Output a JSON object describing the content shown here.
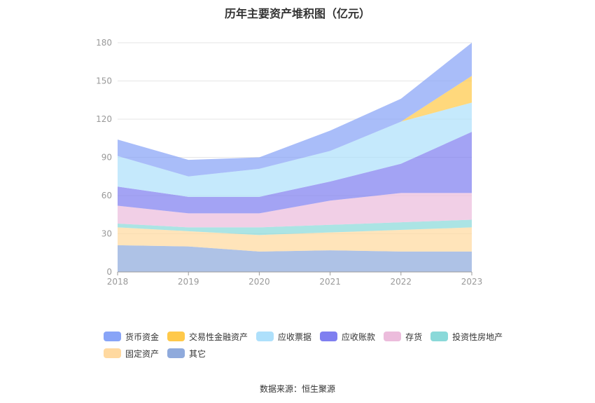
{
  "chart_data": {
    "type": "area",
    "stacked": true,
    "title": "历年主要资产堆积图（亿元）",
    "x": [
      "2018",
      "2019",
      "2020",
      "2021",
      "2022",
      "2023"
    ],
    "ylim": [
      0,
      180
    ],
    "yticks": [
      0,
      30,
      60,
      90,
      120,
      150,
      180
    ],
    "grid": true,
    "legend_position": "bottom",
    "series": [
      {
        "name": "其它",
        "color": "#8faadc",
        "values": [
          21,
          20,
          16,
          17,
          16,
          16
        ]
      },
      {
        "name": "固定资产",
        "color": "#ffd9a0",
        "values": [
          14,
          12,
          13,
          14,
          17,
          19
        ]
      },
      {
        "name": "投资性房地产",
        "color": "#8ad9d9",
        "values": [
          3,
          3,
          6,
          6,
          6,
          6
        ]
      },
      {
        "name": "存货",
        "color": "#ecbcdc",
        "values": [
          14,
          11,
          11,
          19,
          23,
          21
        ]
      },
      {
        "name": "应收账款",
        "color": "#7f7ff0",
        "values": [
          15,
          13,
          13,
          15,
          23,
          48
        ]
      },
      {
        "name": "应收票据",
        "color": "#aee0fb",
        "values": [
          24,
          16,
          22,
          24,
          33,
          23
        ]
      },
      {
        "name": "交易性金融资产",
        "color": "#ffc94a",
        "values": [
          0,
          0,
          0,
          0,
          0,
          21
        ]
      },
      {
        "name": "货币资金",
        "color": "#88a4f7",
        "values": [
          13,
          13,
          9,
          16,
          18,
          26
        ]
      }
    ]
  },
  "legend_order": [
    "货币资金",
    "交易性金融资产",
    "应收票据",
    "应收账款",
    "存货",
    "投资性房地产",
    "固定资产",
    "其它"
  ],
  "source": "数据来源：恒生聚源"
}
